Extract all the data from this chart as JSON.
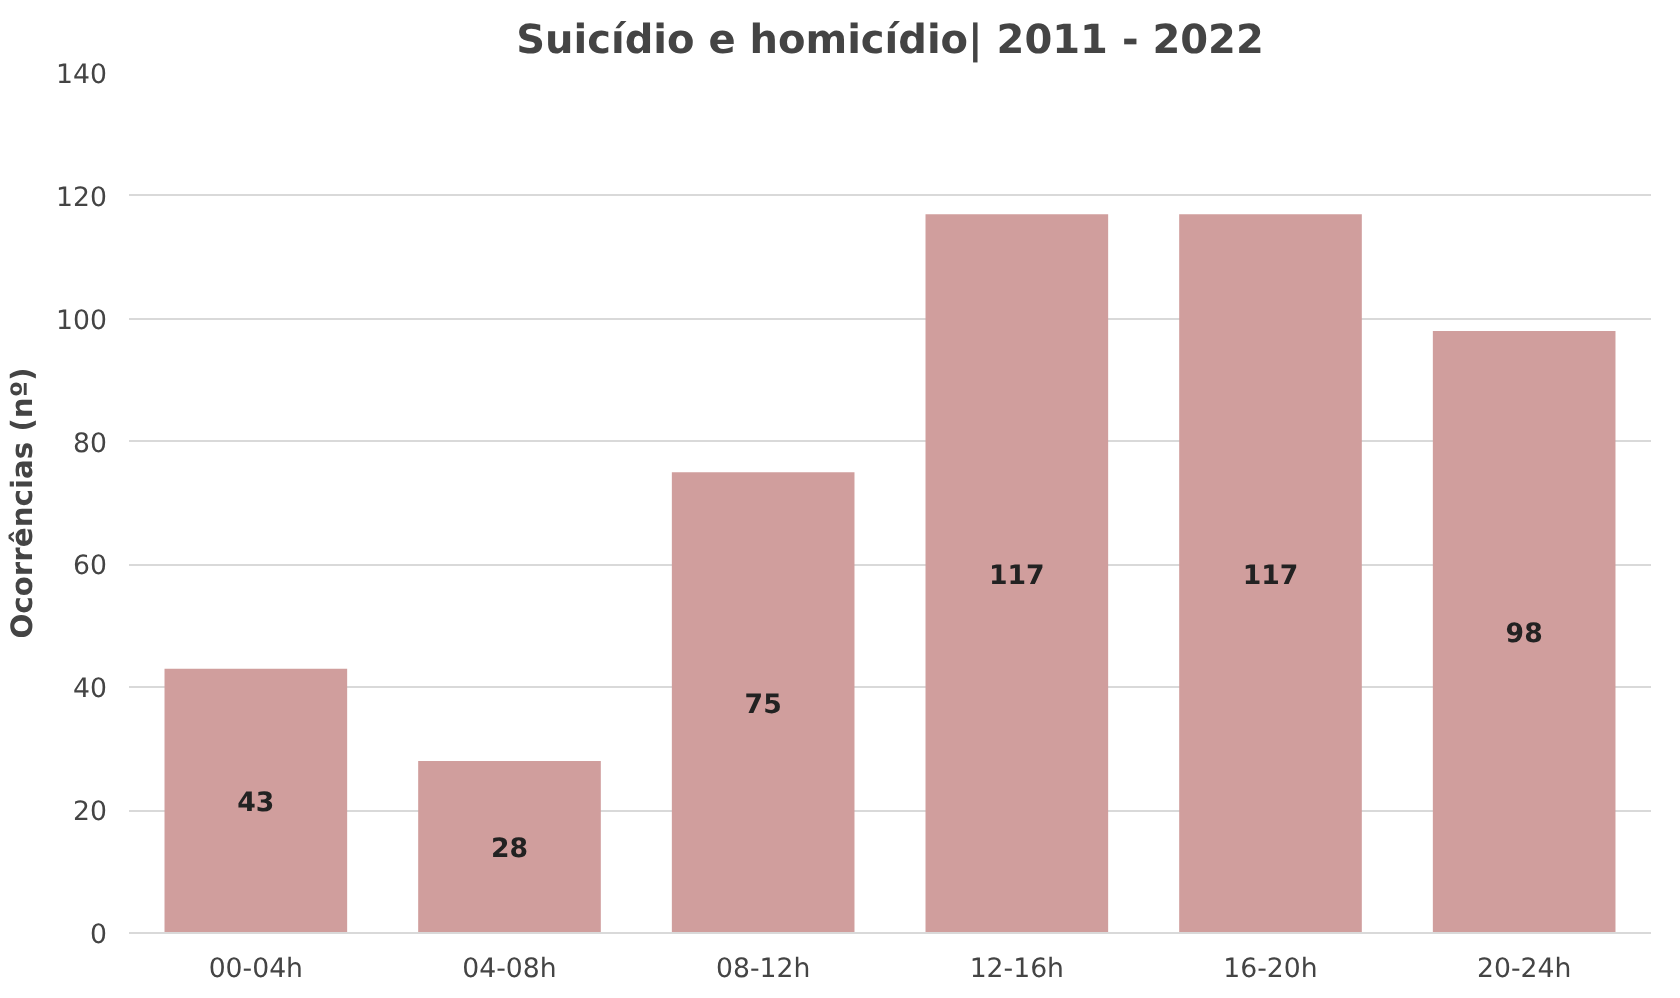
{
  "chart_data": {
    "type": "bar",
    "title": "Suicídio e homicídio| 2011 - 2022",
    "ylabel": "Ocorrências (nº)",
    "categories": [
      "00-04h",
      "04-08h",
      "08-12h",
      "12-16h",
      "16-20h",
      "20-24h"
    ],
    "values": [
      43,
      28,
      75,
      117,
      117,
      98
    ],
    "color": "#d09e9d",
    "ylim": [
      0,
      140
    ],
    "yticks": [
      0,
      20,
      40,
      60,
      80,
      100,
      120,
      140
    ],
    "grid": "y",
    "data_labels": true
  }
}
